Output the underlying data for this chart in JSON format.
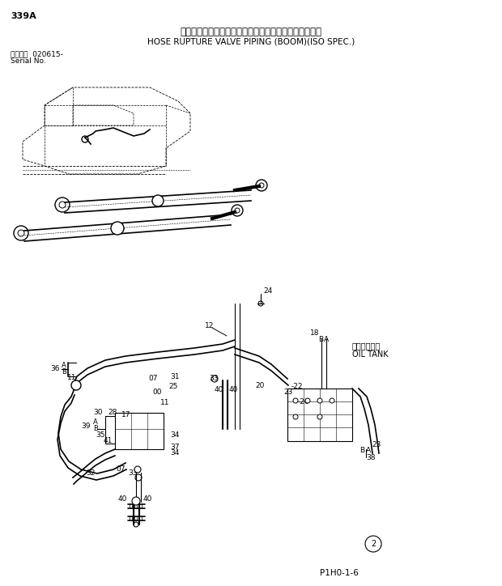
{
  "bg_color": "#ffffff",
  "title_jp": "ホースラプチャーバルブ配管（ブーム）（ＩＳＯ仕様）",
  "title_en": "HOSE RUPTURE VALVE PIPING (BOOM)(ISO SPEC.)",
  "page_num": "339A",
  "serial_label": "通用号機  020615-",
  "serial_sub": "Serial No.",
  "page_code": "P1H0-1-6",
  "lc": "#000000",
  "tc": "#000000"
}
